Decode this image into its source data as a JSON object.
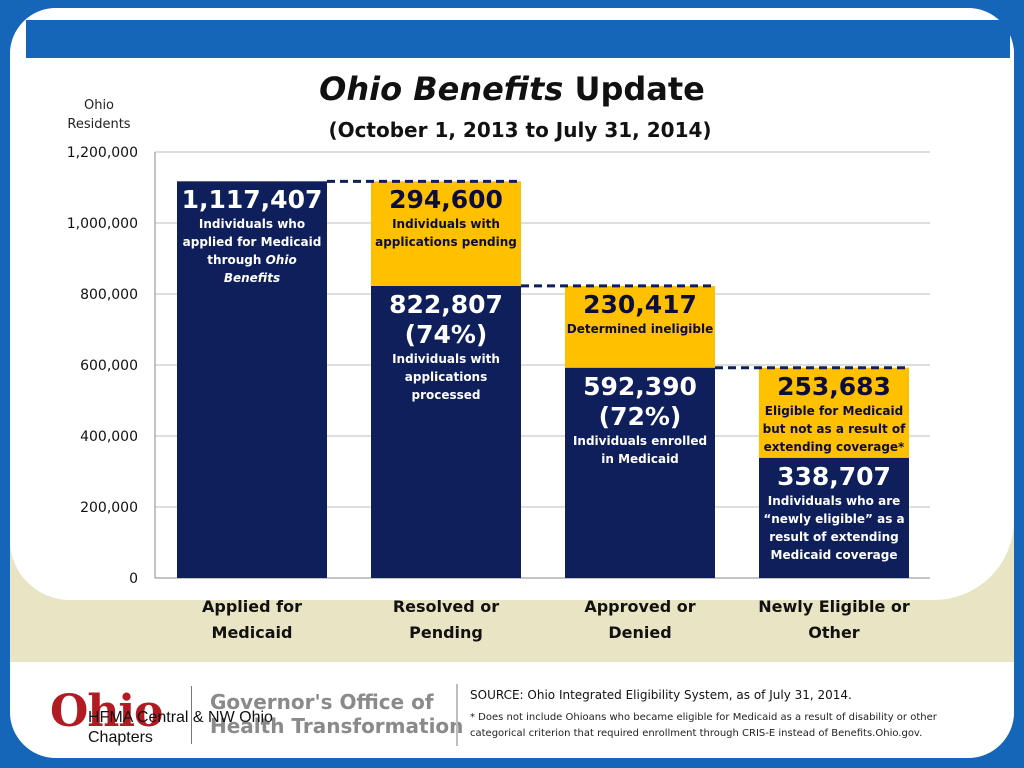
{
  "title_italic": "Ohio Benefits",
  "title_rest": " Update",
  "subtitle": "(October 1, 2013 to July 31, 2014)",
  "footer": {
    "logo_text": "Ohio",
    "office_line1": "Governor's Office of",
    "office_line2": "Health Transformation",
    "chapter_text": "HFMA Central & NW Ohio Chapters",
    "source": "SOURCE: Ohio Integrated Eligibility System, as of July 31, 2014.",
    "note": "* Does not include Ohioans who became eligible for Medicaid as a result of disability or other categorical criterion that required enrollment through CRIS-E instead of Benefits.Ohio.gov."
  },
  "colors": {
    "navy": "#0e1f5b",
    "gold": "#ffc000",
    "slide_blue": "#1565b8"
  },
  "chart_data": {
    "type": "bar",
    "stacked": true,
    "title": "Ohio Benefits Update",
    "subtitle": "(October 1, 2013 to July 31, 2014)",
    "ylabel_line1": "Ohio",
    "ylabel_line2": "Residents",
    "ylim": [
      0,
      1200000
    ],
    "yticks": [
      0,
      200000,
      400000,
      600000,
      800000,
      1000000,
      1200000
    ],
    "ytick_labels": [
      "0",
      "200,000",
      "400,000",
      "600,000",
      "800,000",
      "1,000,000",
      "1,200,000"
    ],
    "grid": true,
    "legend": "none",
    "categories": [
      {
        "line1": "Applied for Medicaid",
        "line2": ""
      },
      {
        "line1": "Resolved or",
        "line2": "Pending"
      },
      {
        "line1": "Approved or",
        "line2": "Denied"
      },
      {
        "line1": "Newly Eligible or",
        "line2": "Other"
      }
    ],
    "bars": [
      {
        "segments": [
          {
            "value": 1117407,
            "color": "navy",
            "label_big": [
              "1,117,407"
            ],
            "label_small": [
              "Individuals who",
              "applied for Medicaid",
              "through Ohio",
              "Benefits"
            ]
          }
        ]
      },
      {
        "segments": [
          {
            "value": 822807,
            "color": "navy",
            "label_big": [
              "822,807",
              "(74%)"
            ],
            "label_small": [
              "Individuals with",
              "applications",
              "processed"
            ]
          },
          {
            "value": 294600,
            "color": "gold",
            "label_big": [
              "294,600"
            ],
            "label_small": [
              "Individuals with",
              "applications pending"
            ]
          }
        ]
      },
      {
        "segments": [
          {
            "value": 592390,
            "color": "navy",
            "label_big": [
              "592,390",
              "(72%)"
            ],
            "label_small": [
              "Individuals enrolled",
              "in Medicaid"
            ]
          },
          {
            "value": 230417,
            "color": "gold",
            "label_big": [
              "230,417"
            ],
            "label_small": [
              "Determined ineligible"
            ]
          }
        ]
      },
      {
        "segments": [
          {
            "value": 338707,
            "color": "navy",
            "label_big": [
              "338,707"
            ],
            "label_small": [
              "Individuals who are",
              "“newly eligible” as a",
              "result of extending",
              "Medicaid coverage"
            ]
          },
          {
            "value": 253683,
            "color": "gold",
            "label_big": [
              "253,683"
            ],
            "label_small": [
              "Eligible for Medicaid",
              "but not as a result of",
              "extending coverage*"
            ]
          }
        ]
      }
    ]
  }
}
